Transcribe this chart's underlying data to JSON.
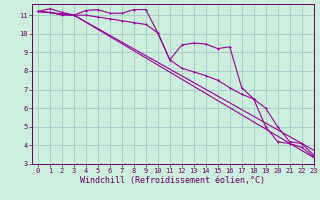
{
  "background_color": "#cceedd",
  "grid_color": "#aacccc",
  "line_color": "#990099",
  "xlim": [
    -0.5,
    23
  ],
  "ylim": [
    3,
    11.6
  ],
  "xlabel": "Windchill (Refroidissement éolien,°C)",
  "xlabel_fontsize": 6.0,
  "yticks": [
    3,
    4,
    5,
    6,
    7,
    8,
    9,
    10,
    11
  ],
  "xticks": [
    0,
    1,
    2,
    3,
    4,
    5,
    6,
    7,
    8,
    9,
    10,
    11,
    12,
    13,
    14,
    15,
    16,
    17,
    18,
    19,
    20,
    21,
    22,
    23
  ],
  "line1_x": [
    0,
    1,
    2,
    3,
    4,
    5,
    6,
    7,
    8,
    9,
    10,
    11,
    12,
    13,
    14,
    15,
    16,
    17,
    18,
    19,
    20,
    21,
    22,
    23
  ],
  "line1_y": [
    11.2,
    11.35,
    11.15,
    11.0,
    11.25,
    11.3,
    11.1,
    11.1,
    11.3,
    11.3,
    10.05,
    8.6,
    9.4,
    9.5,
    9.45,
    9.2,
    9.3,
    7.1,
    6.5,
    5.0,
    4.2,
    4.1,
    3.9,
    3.4
  ],
  "line2_x": [
    0,
    1,
    2,
    3,
    4,
    5,
    6,
    7,
    8,
    9,
    10,
    11,
    12,
    13,
    14,
    15,
    16,
    17,
    18,
    19,
    20,
    21,
    22,
    23
  ],
  "line2_y": [
    11.2,
    11.15,
    11.0,
    11.0,
    11.0,
    10.9,
    10.8,
    10.7,
    10.6,
    10.5,
    10.05,
    8.6,
    8.15,
    7.95,
    7.75,
    7.5,
    7.1,
    6.75,
    6.5,
    6.0,
    5.0,
    4.2,
    4.1,
    3.5
  ],
  "line3_x": [
    0,
    3,
    23
  ],
  "line3_y": [
    11.2,
    11.0,
    3.35
  ],
  "line4_x": [
    0,
    3,
    23
  ],
  "line4_y": [
    11.2,
    11.0,
    3.75
  ]
}
